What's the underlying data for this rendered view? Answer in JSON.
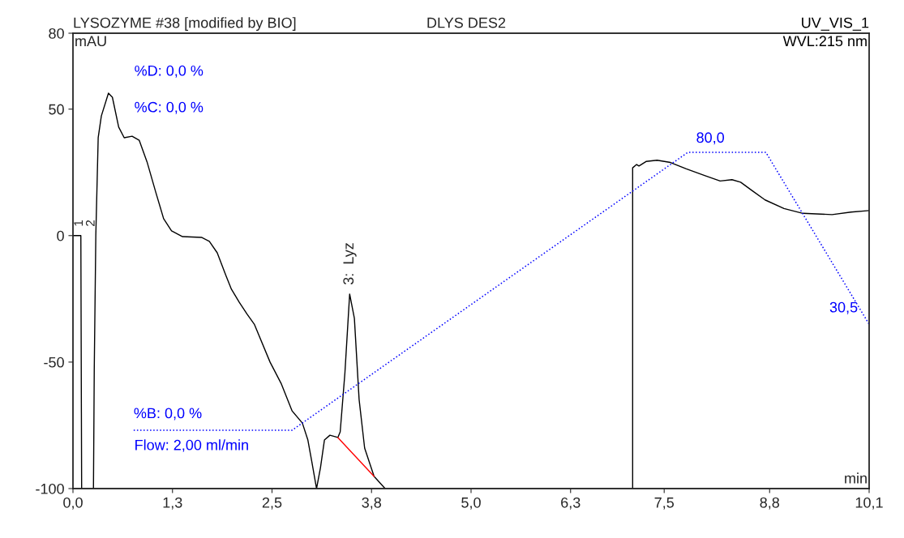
{
  "chart_data": {
    "type": "line",
    "title": "LYSOZYME #38 [modified by BIO]",
    "subtitle": "DLYS DES2",
    "xlabel": "min",
    "ylabel": "mAU",
    "xlim": [
      0,
      10.1
    ],
    "ylim": [
      -100,
      80
    ],
    "y2lim": [
      -16.8,
      114.3
    ],
    "xticks": [
      {
        "value": 0,
        "label": "0,0"
      },
      {
        "value": 1.2625,
        "label": "1,3"
      },
      {
        "value": 2.525,
        "label": "2,5"
      },
      {
        "value": 3.7875,
        "label": "3,8"
      },
      {
        "value": 5.05,
        "label": "5,0"
      },
      {
        "value": 6.3125,
        "label": "6,3"
      },
      {
        "value": 7.5,
        "label": "7,5"
      },
      {
        "value": 8.8375,
        "label": "8,8"
      },
      {
        "value": 10.1,
        "label": "10,1"
      }
    ],
    "yticks": [
      -100,
      -50,
      0,
      50,
      80
    ],
    "grid": false,
    "legend": false,
    "series": [
      {
        "color": "#000000",
        "x": [
          0.0,
          0.08,
          0.1,
          0.11,
          0.17,
          0.26,
          0.27,
          0.29,
          0.32,
          0.36,
          0.45,
          0.5,
          0.58,
          0.65,
          0.75,
          0.84,
          0.94,
          1.05,
          1.15,
          1.25,
          1.39,
          1.63,
          1.73,
          1.83,
          1.94,
          2.01,
          2.11,
          2.21,
          2.3,
          2.5,
          2.64,
          2.78,
          2.91,
          2.98,
          3.03,
          3.09,
          3.14,
          3.19,
          3.26,
          3.36,
          3.39,
          3.45,
          3.51,
          3.57,
          3.63,
          3.7,
          3.82,
          3.96,
          5.0,
          7.1,
          7.1,
          7.15,
          7.18,
          7.27,
          7.41,
          7.58,
          7.78,
          8.02,
          8.21,
          8.36,
          8.47,
          8.61,
          8.78,
          9.02,
          9.26,
          9.63,
          9.87,
          10.1
        ],
        "values": [
          0,
          0,
          0,
          -100,
          null,
          -100,
          -53.2,
          0.3,
          38.7,
          47.3,
          56.3,
          54.7,
          42.9,
          38.7,
          39.3,
          37.7,
          29.1,
          17.2,
          6.7,
          1.9,
          -0.4,
          -0.7,
          -2.3,
          -6.8,
          -15.8,
          -21.2,
          -26.4,
          -31.1,
          -35.0,
          -50.0,
          -58.4,
          -69.3,
          -74.1,
          -80.8,
          -89.4,
          -100,
          -91.7,
          -80.8,
          -78.9,
          -79.8,
          -77.6,
          -54.2,
          -23.1,
          -32.7,
          -64.8,
          -84.0,
          -95.2,
          -100,
          null,
          -100,
          26.8,
          28.1,
          27.5,
          29.3,
          29.8,
          28.9,
          26.4,
          23.7,
          21.6,
          22.1,
          21.1,
          17.9,
          14.1,
          10.7,
          8.8,
          8.3,
          9.3,
          9.9
        ]
      },
      {
        "color": "#ff0000",
        "x": [
          3.36,
          3.82
        ],
        "values": [
          -79.8,
          -95.2
        ]
      },
      {
        "color": "#0000ff",
        "axis": "y2",
        "line_style": "dotted",
        "x": [
          0.77,
          2.78,
          7.8,
          8.79,
          10.1
        ],
        "values": [
          0,
          0,
          80,
          80,
          30.5
        ],
        "value_labels": [
          "%B: 0,0 %",
          null,
          "80,0",
          null,
          "30,5"
        ]
      }
    ],
    "annotations": [
      "UV_VIS_1",
      "WVL:215 nm",
      "%D: 0,0 %",
      "%C: 0,0 %",
      "Flow: 2,00 ml/min",
      {
        "text": "3:  Lyz",
        "x": 3.51,
        "y": -23.1
      },
      {
        "text": "1",
        "x": 0.04,
        "y": 0
      },
      {
        "text": "2",
        "x": 0.09,
        "y": 0
      }
    ]
  }
}
